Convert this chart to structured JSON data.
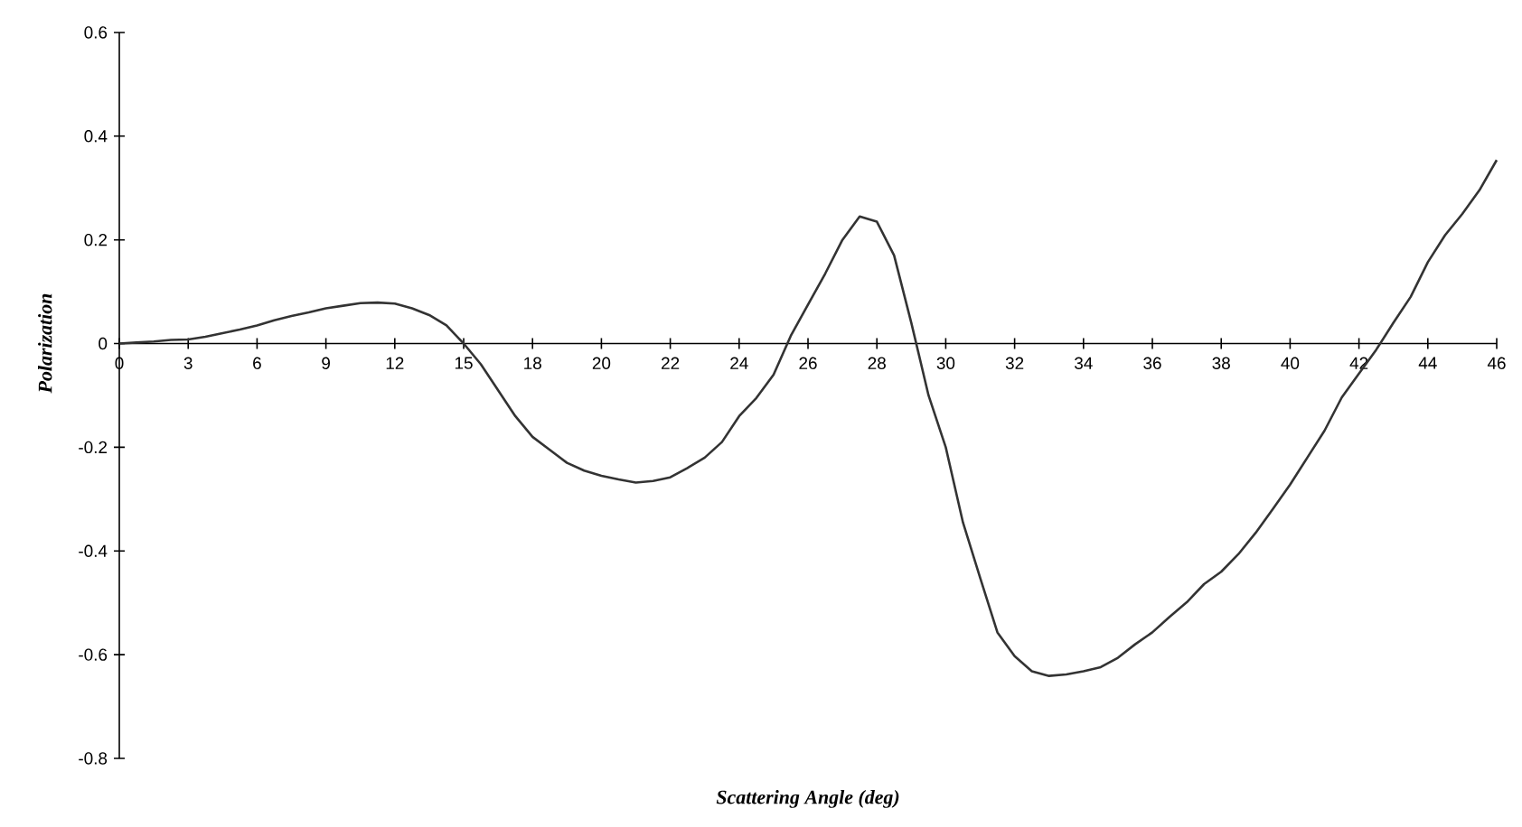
{
  "chart_data": {
    "type": "line",
    "xlabel": "Scattering Angle (deg)",
    "ylabel": "Polarization",
    "categories": [
      "0",
      null,
      null,
      null,
      "3",
      null,
      null,
      null,
      "6",
      null,
      null,
      null,
      "9",
      null,
      null,
      null,
      "12",
      null,
      null,
      null,
      "15",
      null,
      null,
      null,
      "18",
      null,
      null,
      null,
      "20",
      null,
      null,
      null,
      "22",
      null,
      null,
      null,
      "24",
      null,
      null,
      null,
      "26",
      null,
      null,
      null,
      "28",
      null,
      null,
      null,
      "30",
      null,
      null,
      null,
      "32",
      null,
      null,
      null,
      "34",
      null,
      null,
      null,
      "36",
      null,
      null,
      null,
      "38",
      null,
      null,
      null,
      "40",
      null,
      null,
      null,
      "42",
      null,
      null,
      null,
      "44",
      null,
      null,
      null,
      "46"
    ],
    "values": [
      0,
      0.002,
      0.004,
      0.007,
      0.008,
      0.013,
      0.02,
      0.027,
      0.035,
      0.045,
      0.053,
      0.06,
      0.068,
      0.073,
      0.078,
      0.079,
      0.077,
      0.068,
      0.055,
      0.035,
      0,
      -0.04,
      -0.09,
      -0.14,
      -0.18,
      -0.205,
      -0.23,
      -0.245,
      -0.255,
      -0.262,
      -0.268,
      -0.265,
      -0.258,
      -0.24,
      -0.22,
      -0.19,
      -0.14,
      -0.105,
      -0.06,
      0.015,
      0.075,
      0.135,
      0.2,
      0.245,
      0.235,
      0.17,
      0.04,
      -0.1,
      -0.2,
      -0.345,
      -0.452,
      -0.557,
      -0.603,
      -0.632,
      -0.641,
      -0.638,
      -0.632,
      -0.624,
      -0.606,
      -0.58,
      -0.557,
      -0.527,
      -0.499,
      -0.464,
      -0.44,
      -0.406,
      -0.365,
      -0.319,
      -0.272,
      -0.22,
      -0.168,
      -0.104,
      -0.058,
      -0.012,
      0.04,
      0.09,
      0.157,
      0.209,
      0.25,
      0.296,
      0.354
    ],
    "color": "#333333",
    "ylim": [
      -0.8,
      0.6
    ],
    "yticks": [
      -0.8,
      -0.6,
      -0.4,
      -0.2,
      0,
      0.2,
      0.4,
      0.6
    ],
    "grid": false,
    "marker": "none",
    "line_style": "solid"
  }
}
